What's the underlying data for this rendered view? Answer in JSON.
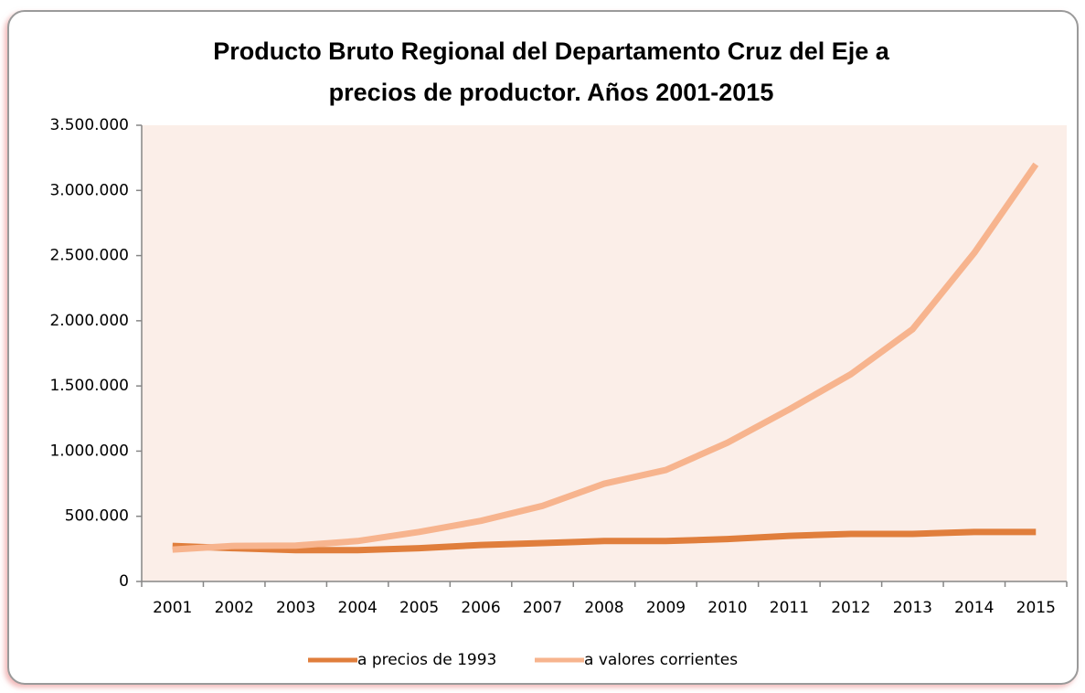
{
  "chart_data": {
    "type": "line",
    "title": [
      "Producto Bruto Regional del Departamento Cruz del Eje a",
      "precios de productor. Años 2001-2015"
    ],
    "categories": [
      "2001",
      "2002",
      "2003",
      "2004",
      "2005",
      "2006",
      "2007",
      "2008",
      "2009",
      "2010",
      "2011",
      "2012",
      "2013",
      "2014",
      "2015"
    ],
    "series": [
      {
        "name": "a precios de 1993",
        "color": "#e07e3c",
        "values": [
          273000,
          255000,
          240000,
          240000,
          255000,
          280000,
          295000,
          310000,
          310000,
          325000,
          350000,
          365000,
          365000,
          380000,
          380000
        ]
      },
      {
        "name": "a valores corrientes",
        "color": "#f7b48e",
        "values": [
          245000,
          273000,
          275000,
          310000,
          380000,
          465000,
          580000,
          750000,
          855000,
          1065000,
          1320000,
          1590000,
          1935000,
          2520000,
          3200000
        ]
      }
    ],
    "ylim": [
      0,
      3500000
    ],
    "yticks": [
      0,
      {
        "value": 500000,
        "label": "500.000"
      },
      {
        "value": 1000000,
        "label": "1.000.000"
      },
      {
        "value": 1500000,
        "label": "1.500.000"
      },
      {
        "value": 2000000,
        "label": "2.000.000"
      },
      {
        "value": 2500000,
        "label": "2.500.000"
      },
      {
        "value": 3000000,
        "label": "3.000.000"
      },
      {
        "value": 3500000,
        "label": "3.500.000"
      }
    ],
    "legend": "bottom"
  }
}
